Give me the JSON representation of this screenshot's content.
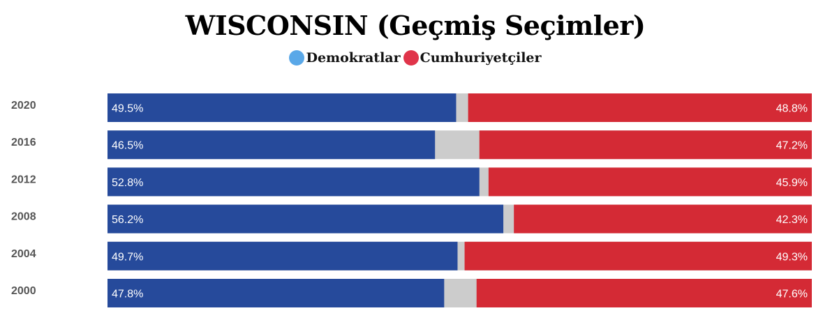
{
  "chart_data": {
    "type": "bar",
    "stacked": true,
    "orientation": "horizontal",
    "title": "WISCONSIN (Geçmiş Seçimler)",
    "categories": [
      "2020",
      "2016",
      "2012",
      "2008",
      "2004",
      "2000"
    ],
    "series": [
      {
        "name": "Demokratlar",
        "values": [
          49.5,
          46.5,
          52.8,
          56.2,
          49.7,
          47.8
        ],
        "labels": [
          "49.5%",
          "46.5%",
          "52.8%",
          "56.2%",
          "49.7%",
          "47.8%"
        ]
      },
      {
        "name": "Cumhuriyetçiler",
        "values": [
          48.8,
          47.2,
          45.9,
          42.3,
          49.3,
          47.6
        ],
        "labels": [
          "48.8%",
          "47.2%",
          "45.9%",
          "42.3%",
          "49.3%",
          "47.6%"
        ]
      }
    ],
    "xlim": [
      0,
      100
    ],
    "legend_position": "top-center",
    "grid": false
  },
  "colors": {
    "dem_bar": "#264a9b",
    "rep_bar": "#d42a35",
    "other_bar": "#cccccc",
    "dem_legend": "#5aa8e8",
    "rep_legend": "#e0344a"
  }
}
